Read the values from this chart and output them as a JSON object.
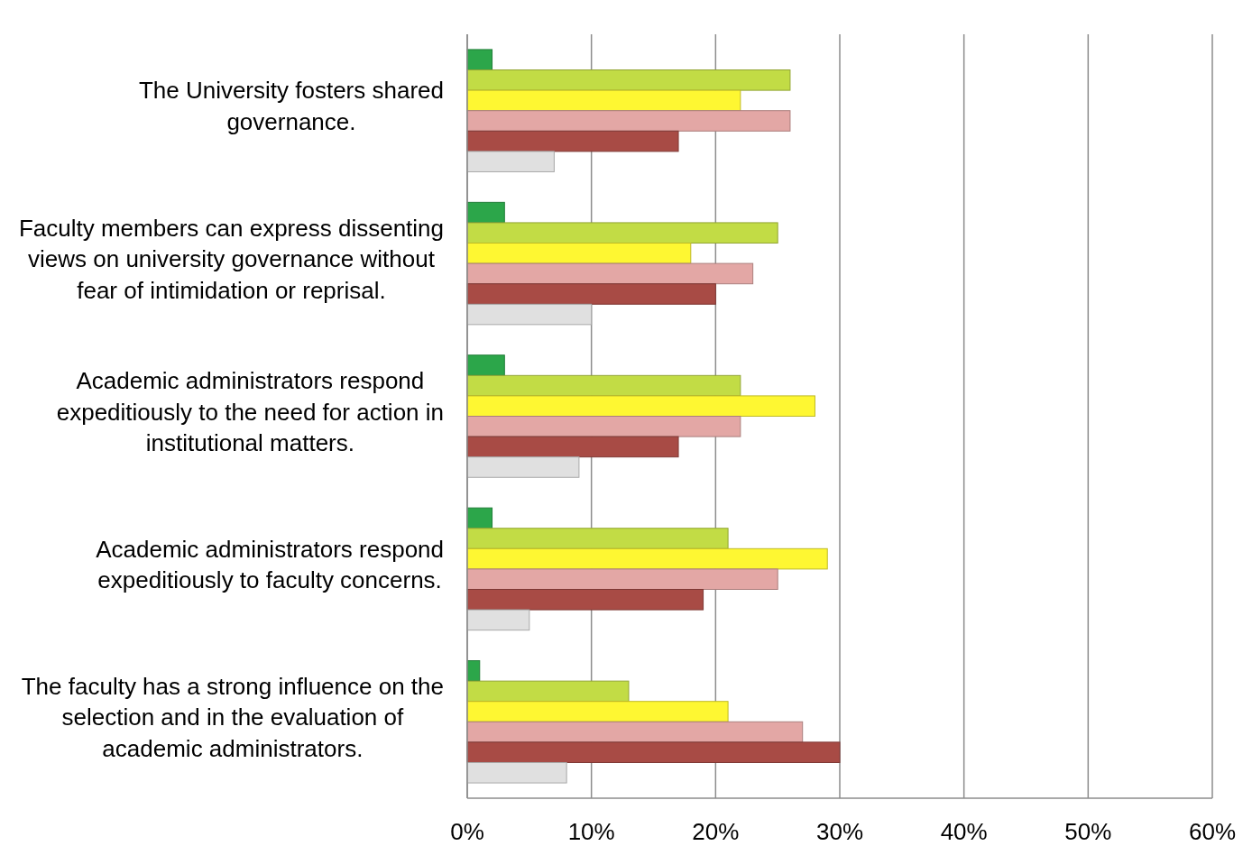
{
  "chart_data": {
    "type": "bar",
    "orientation": "horizontal",
    "categories": [
      "The University fosters shared governance.",
      "Faculty members can express dissenting views on university governance without fear of intimidation or reprisal.",
      "Academic administrators respond expeditiously to the need for action in institutional matters.",
      "Academic administrators respond expeditiously to faculty concerns.",
      "The faculty has a strong influence on the selection and in the evaluation of academic administrators."
    ],
    "series": [
      {
        "color": "#2ca64a",
        "values": [
          2,
          3,
          3,
          2,
          1
        ]
      },
      {
        "color": "#c2dc45",
        "values": [
          26,
          25,
          22,
          21,
          13
        ]
      },
      {
        "color": "#fef732",
        "values": [
          22,
          18,
          28,
          29,
          21
        ]
      },
      {
        "color": "#e3a7a5",
        "values": [
          26,
          23,
          22,
          25,
          27
        ]
      },
      {
        "color": "#a84b45",
        "values": [
          17,
          20,
          17,
          19,
          30
        ]
      },
      {
        "color": "#e0e0e0",
        "values": [
          7,
          10,
          9,
          5,
          8
        ]
      }
    ],
    "xlim": [
      0,
      60
    ],
    "xticks": [
      {
        "value": 0,
        "label": "0%"
      },
      {
        "value": 10,
        "label": "10%"
      },
      {
        "value": 20,
        "label": "20%"
      },
      {
        "value": 30,
        "label": "30%"
      },
      {
        "value": 40,
        "label": "40%"
      },
      {
        "value": 50,
        "label": "50%"
      },
      {
        "value": 60,
        "label": "60%"
      }
    ],
    "grid": "x"
  }
}
